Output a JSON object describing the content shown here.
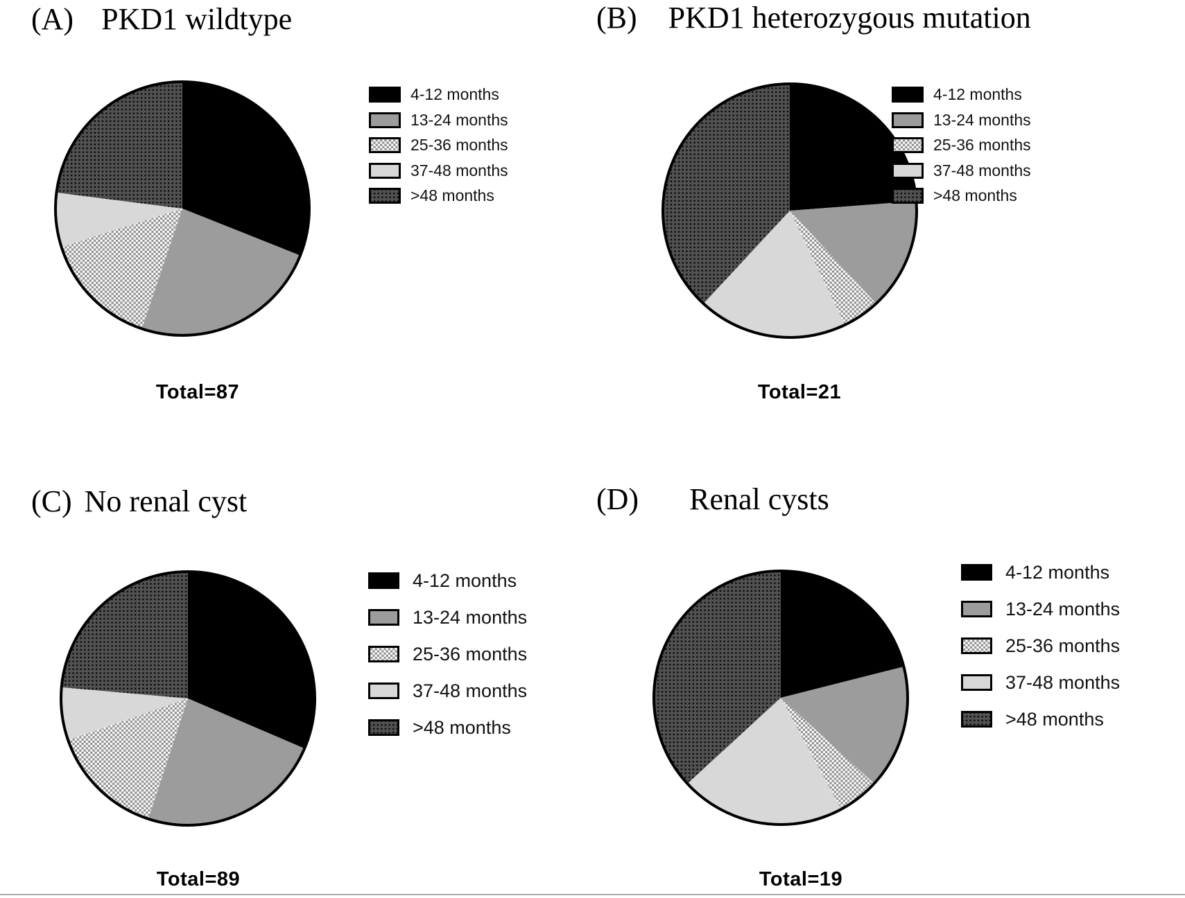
{
  "legend": {
    "labels": [
      "4-12 months",
      "13-24 months",
      "25-36 months",
      "37-48 months",
      ">48 months"
    ]
  },
  "styles": {
    "background": "#ffffff",
    "pie_outline_color": "#000000",
    "bottom_rule_color": "#adadad",
    "slice_fills": [
      {
        "name": "solid-black",
        "type": "solid",
        "color": "#000000"
      },
      {
        "name": "solid-gray",
        "type": "solid",
        "color": "#9c9c9c"
      },
      {
        "name": "checkerboard",
        "type": "pattern",
        "pattern": "checker",
        "colors": [
          "#ffffff",
          "#8f8f8f"
        ]
      },
      {
        "name": "solid-light-gray",
        "type": "solid",
        "color": "#d8d8d8"
      },
      {
        "name": "dark-dotted",
        "type": "pattern",
        "pattern": "dots",
        "colors": [
          "#515151",
          "#000000"
        ]
      }
    ]
  },
  "chart_data": [
    {
      "type": "pie",
      "panel": "A",
      "panel_label": "(A)",
      "title": "PKD1 wildtype",
      "categories": [
        "4-12 months",
        "13-24 months",
        "25-36 months",
        "37-48 months",
        ">48 months"
      ],
      "values": [
        27,
        21,
        13,
        6,
        20
      ],
      "total": 87,
      "total_label": "Total=87",
      "start_angle_deg": 0,
      "direction": "clockwise",
      "legend_position": "right"
    },
    {
      "type": "pie",
      "panel": "B",
      "panel_label": "(B)",
      "title": "PKD1 heterozygous mutation",
      "categories": [
        "4-12 months",
        "13-24 months",
        "25-36 months",
        "37-48 months",
        ">48 months"
      ],
      "values": [
        5,
        3,
        1,
        4,
        8
      ],
      "total": 21,
      "total_label": "Total=21",
      "start_angle_deg": 0,
      "direction": "clockwise",
      "legend_position": "right"
    },
    {
      "type": "pie",
      "panel": "C",
      "panel_label": "(C)",
      "title": "No renal cyst",
      "categories": [
        "4-12 months",
        "13-24 months",
        "25-36 months",
        "37-48 months",
        ">48 months"
      ],
      "values": [
        28,
        21,
        13,
        6,
        21
      ],
      "total": 89,
      "total_label": "Total=89",
      "start_angle_deg": 0,
      "direction": "clockwise",
      "legend_position": "right"
    },
    {
      "type": "pie",
      "panel": "D",
      "panel_label": "(D)",
      "title": "Renal cysts",
      "categories": [
        "4-12 months",
        "13-24 months",
        "25-36 months",
        "37-48 months",
        ">48 months"
      ],
      "values": [
        4,
        3,
        1,
        4,
        7
      ],
      "total": 19,
      "total_label": "Total=19",
      "start_angle_deg": 0,
      "direction": "clockwise",
      "legend_position": "right"
    }
  ]
}
